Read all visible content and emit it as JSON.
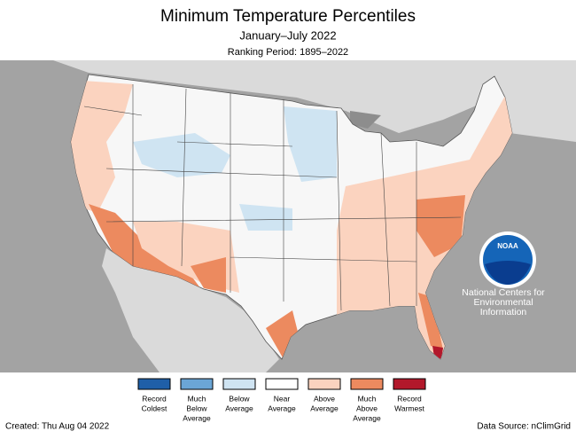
{
  "header": {
    "title": "Minimum Temperature Percentiles",
    "subtitle": "January–July 2022",
    "ranking_period": "Ranking Period: 1895–2022"
  },
  "legend": [
    {
      "lines": [
        "Record",
        "Coldest"
      ],
      "color": "#1f5fa8"
    },
    {
      "lines": [
        "Much",
        "Below",
        "Average"
      ],
      "color": "#6ba6d6"
    },
    {
      "lines": [
        "Below",
        "Average"
      ],
      "color": "#cfe4f2"
    },
    {
      "lines": [
        "Near",
        "Average"
      ],
      "color": "#ffffff"
    },
    {
      "lines": [
        "Above",
        "Average"
      ],
      "color": "#fbd3bf"
    },
    {
      "lines": [
        "Much",
        "Above",
        "Average"
      ],
      "color": "#ec8a5f"
    },
    {
      "lines": [
        "Record",
        "Warmest"
      ],
      "color": "#b2182b"
    }
  ],
  "logo": {
    "mark": "NOAA",
    "caption": [
      "National Centers for",
      "Environmental",
      "Information"
    ]
  },
  "footer": {
    "created": "Created: Thu Aug 04 2022",
    "source": "Data Source: nClimGrid"
  }
}
